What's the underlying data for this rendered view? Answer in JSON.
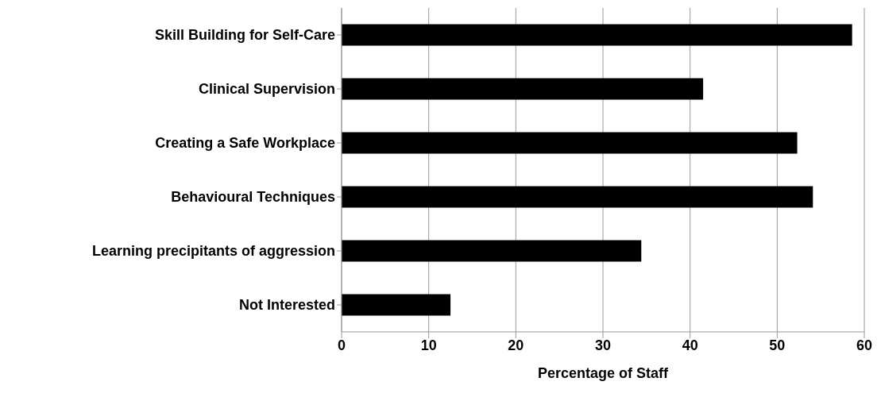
{
  "chart_data": {
    "type": "bar",
    "orientation": "horizontal",
    "xlabel": "Percentage of Staff",
    "categories": [
      "Skill Building for Self-Care",
      "Clinical Supervision",
      "Creating a Safe Workplace",
      "Behavioural Techniques",
      "Learning precipitants of aggression",
      "Not Interested"
    ],
    "values": [
      58.6,
      41.5,
      52.3,
      54.1,
      34.4,
      12.5
    ],
    "color": "#000000",
    "xlim": [
      0,
      60
    ],
    "xticks": [
      0,
      10,
      20,
      30,
      40,
      50,
      60
    ],
    "grid": "x",
    "legend": false
  }
}
